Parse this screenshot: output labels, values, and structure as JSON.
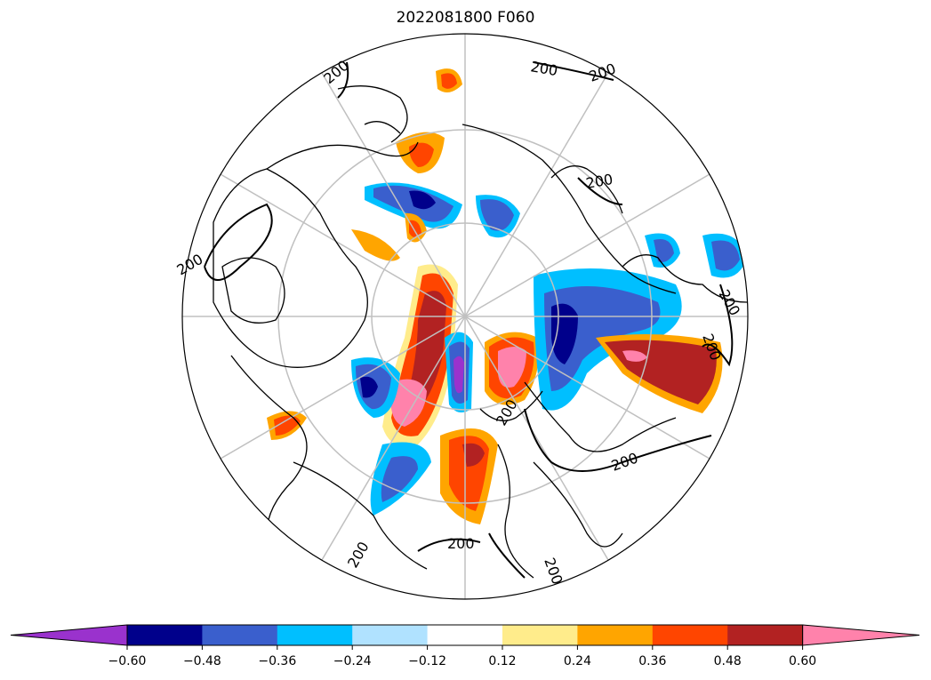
{
  "title": "2022081800 F060",
  "contour_labels": [
    "200",
    "200",
    "200",
    "200",
    "200",
    "200",
    "200",
    "200",
    "200",
    "200",
    "200",
    "200"
  ],
  "colorbar": {
    "colors": [
      "#9a32cd",
      "#00008b",
      "#3a5fcd",
      "#00bfff",
      "#b0e2ff",
      "#ffffff",
      "#ffec8b",
      "#ffa500",
      "#ff4500",
      "#b22222",
      "#ff82ab"
    ],
    "tick_labels": [
      "−0.60",
      "−0.48",
      "−0.36",
      "−0.24",
      "−0.12",
      "0.12",
      "0.24",
      "0.36",
      "0.48",
      "0.60"
    ],
    "extend": "both"
  },
  "map": {
    "projection": "north-polar-stereographic",
    "land_line_color": "#000000",
    "graticule_color": "#c0c0c0"
  }
}
